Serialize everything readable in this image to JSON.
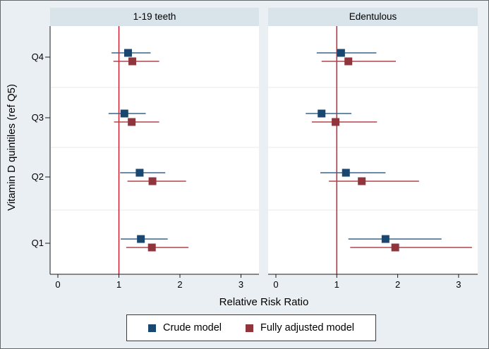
{
  "figure": {
    "y_axis_title": "Vitamin D quintiles (ref Q5)",
    "x_axis_title": "Relative Risk Ratio"
  },
  "colors": {
    "figure_background": "#e9eff3",
    "panel_header_background": "#d8e3ea",
    "plot_background": "#ffffff",
    "gridline": "#e3ebf0",
    "axis_line": "#1a1a1a",
    "reference_line": "#cb2132",
    "crude_marker": "#1a476f",
    "crude_ci_line": "#3a6389",
    "adjusted_marker": "#90353b",
    "adjusted_ci_line": "#b2434c"
  },
  "legend": {
    "items": [
      {
        "label": "Crude model",
        "color": "#1a476f"
      },
      {
        "label": "Fully adjusted model",
        "color": "#90353b"
      }
    ]
  },
  "chart_data": {
    "type": "scatter",
    "variant": "forest-plot-with-error-bars",
    "xlabel": "Relative Risk Ratio",
    "ylabel": "Vitamin D quintiles (ref Q5)",
    "categories_top_to_bottom": [
      "Q4",
      "Q3",
      "Q2",
      "Q1"
    ],
    "x_ticks": [
      "0",
      "1",
      "2",
      "3"
    ],
    "xlim": [
      -0.13,
      3.3
    ],
    "ref_line_x": 1,
    "grid": "horizontal-separators-between-categories",
    "legend_position": "bottom-center",
    "panels": [
      {
        "title": "1-19 teeth",
        "series": [
          {
            "name": "Crude model",
            "marker_color": "#1a476f",
            "line_color": "#3a6389",
            "values": [
              {
                "category": "Q4",
                "est": 1.15,
                "ci_low": 0.88,
                "ci_high": 1.52
              },
              {
                "category": "Q3",
                "est": 1.09,
                "ci_low": 0.83,
                "ci_high": 1.44
              },
              {
                "category": "Q2",
                "est": 1.34,
                "ci_low": 1.02,
                "ci_high": 1.76
              },
              {
                "category": "Q1",
                "est": 1.36,
                "ci_low": 1.03,
                "ci_high": 1.8
              }
            ]
          },
          {
            "name": "Fully adjusted model",
            "marker_color": "#90353b",
            "line_color": "#b2434c",
            "values": [
              {
                "category": "Q4",
                "est": 1.22,
                "ci_low": 0.91,
                "ci_high": 1.66
              },
              {
                "category": "Q3",
                "est": 1.21,
                "ci_low": 0.92,
                "ci_high": 1.66
              },
              {
                "category": "Q2",
                "est": 1.55,
                "ci_low": 1.14,
                "ci_high": 2.1
              },
              {
                "category": "Q1",
                "est": 1.54,
                "ci_low": 1.12,
                "ci_high": 2.14
              }
            ]
          }
        ]
      },
      {
        "title": "Edentulous",
        "series": [
          {
            "name": "Crude model",
            "marker_color": "#1a476f",
            "line_color": "#3a6389",
            "values": [
              {
                "category": "Q4",
                "est": 1.07,
                "ci_low": 0.67,
                "ci_high": 1.65
              },
              {
                "category": "Q3",
                "est": 0.75,
                "ci_low": 0.49,
                "ci_high": 1.24
              },
              {
                "category": "Q2",
                "est": 1.15,
                "ci_low": 0.73,
                "ci_high": 1.8
              },
              {
                "category": "Q1",
                "est": 1.8,
                "ci_low": 1.19,
                "ci_high": 2.72
              }
            ]
          },
          {
            "name": "Fully adjusted model",
            "marker_color": "#90353b",
            "line_color": "#b2434c",
            "values": [
              {
                "category": "Q4",
                "est": 1.19,
                "ci_low": 0.75,
                "ci_high": 1.97
              },
              {
                "category": "Q3",
                "est": 0.98,
                "ci_low": 0.59,
                "ci_high": 1.66
              },
              {
                "category": "Q2",
                "est": 1.41,
                "ci_low": 0.87,
                "ci_high": 2.35
              },
              {
                "category": "Q1",
                "est": 1.96,
                "ci_low": 1.22,
                "ci_high": 3.22
              }
            ]
          }
        ]
      }
    ]
  }
}
